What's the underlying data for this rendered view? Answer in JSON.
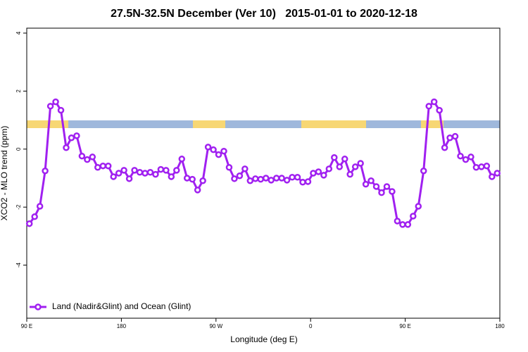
{
  "chart_data": {
    "type": "line",
    "title": "27.5N-32.5N December (Ver 10)   2015-01-01 to 2020-12-18",
    "xlabel": "Longitude (deg E)",
    "ylabel": "XCO2 - MLO trend (ppm)",
    "xlim": [
      90,
      540
    ],
    "ylim": [
      -5.83,
      4.17
    ],
    "xticks": [
      {
        "value": 90,
        "label": "90 E"
      },
      180,
      {
        "value": 270,
        "label": "90 W"
      },
      {
        "value": 360,
        "label": "0"
      },
      {
        "value": 450,
        "label": "90 E"
      },
      {
        "value": 540,
        "label": "180"
      }
    ],
    "yticks": [
      -4,
      -2,
      0,
      2,
      4
    ],
    "legend": "bottomleft",
    "x": [
      92.5,
      97.5,
      102.5,
      107.5,
      112.5,
      117.5,
      122.5,
      127.5,
      132.5,
      137.5,
      142.5,
      147.5,
      152.5,
      157.5,
      162.5,
      167.5,
      172.5,
      177.5,
      182.5,
      187.5,
      192.5,
      197.5,
      202.5,
      207.5,
      212.5,
      217.5,
      222.5,
      227.5,
      232.5,
      237.5,
      242.5,
      247.5,
      252.5,
      257.5,
      262.5,
      267.5,
      272.5,
      277.5,
      282.5,
      287.5,
      292.5,
      297.5,
      302.5,
      307.5,
      312.5,
      317.5,
      322.5,
      327.5,
      332.5,
      337.5,
      342.5,
      347.5,
      352.5,
      357.5,
      362.5,
      367.5,
      372.5,
      377.5,
      382.5,
      387.5,
      392.5,
      397.5,
      402.5,
      407.5,
      412.5,
      417.5,
      422.5,
      427.5,
      432.5,
      437.5,
      442.5,
      447.5,
      452.5,
      457.5,
      462.5,
      467.5,
      472.5,
      477.5,
      482.5,
      487.5,
      492.5,
      497.5,
      502.5,
      507.5,
      512.5,
      517.5,
      522.5,
      527.5,
      532.5,
      537.5
    ],
    "series": [
      {
        "name": "Land (Nadir&Glint) and Ocean (Glint)",
        "color": "#a020f0",
        "values": [
          -2.57,
          -2.33,
          -1.97,
          -0.75,
          1.48,
          1.63,
          1.34,
          0.05,
          0.39,
          0.46,
          -0.24,
          -0.36,
          -0.27,
          -0.63,
          -0.58,
          -0.58,
          -0.95,
          -0.83,
          -0.73,
          -1.02,
          -0.73,
          -0.8,
          -0.83,
          -0.8,
          -0.87,
          -0.7,
          -0.73,
          -0.95,
          -0.73,
          -0.34,
          -1.0,
          -1.04,
          -1.41,
          -1.09,
          0.07,
          -0.02,
          -0.19,
          -0.07,
          -0.63,
          -1.02,
          -0.92,
          -0.68,
          -1.09,
          -1.02,
          -1.04,
          -1.0,
          -1.07,
          -1.0,
          -1.0,
          -1.07,
          -0.97,
          -0.97,
          -1.14,
          -1.12,
          -0.83,
          -0.78,
          -0.9,
          -0.68,
          -0.29,
          -0.61,
          -0.34,
          -0.87,
          -0.61,
          -0.49,
          -1.21,
          -1.09,
          -1.29,
          -1.5,
          -1.29,
          -1.46,
          -2.48,
          -2.6,
          -2.6,
          -2.31,
          -1.97,
          -0.75,
          1.48,
          1.63,
          1.34,
          0.05,
          0.39,
          0.44,
          -0.24,
          -0.36,
          -0.27,
          -0.63,
          -0.61,
          -0.58,
          -0.95,
          -0.83
        ]
      }
    ]
  }
}
